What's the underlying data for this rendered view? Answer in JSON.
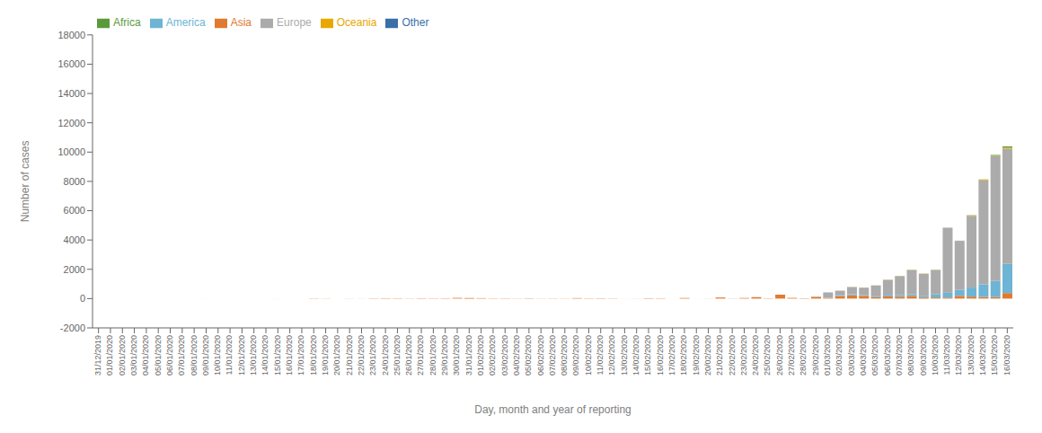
{
  "chart_data": {
    "type": "bar",
    "stacked": true,
    "xlabel": "Day, month and year of reporting",
    "ylabel": "Number of cases",
    "ylim": [
      -2000,
      18000
    ],
    "yticks": [
      -2000,
      0,
      2000,
      4000,
      6000,
      8000,
      10000,
      12000,
      14000,
      16000,
      18000
    ],
    "grid": false,
    "legend": "upper left",
    "categories": [
      "31/12/2019",
      "01/01/2020",
      "02/01/2020",
      "03/01/2020",
      "04/01/2020",
      "05/01/2020",
      "06/01/2020",
      "07/01/2020",
      "08/01/2020",
      "09/01/2020",
      "10/01/2020",
      "11/01/2020",
      "12/01/2020",
      "13/01/2020",
      "14/01/2020",
      "15/01/2020",
      "16/01/2020",
      "17/01/2020",
      "18/01/2020",
      "19/01/2020",
      "20/01/2020",
      "21/01/2020",
      "22/01/2020",
      "23/01/2020",
      "24/01/2020",
      "25/01/2020",
      "26/01/2020",
      "27/01/2020",
      "28/01/2020",
      "29/01/2020",
      "30/01/2020",
      "31/01/2020",
      "01/02/2020",
      "02/02/2020",
      "03/02/2020",
      "04/02/2020",
      "05/02/2020",
      "06/02/2020",
      "07/02/2020",
      "08/02/2020",
      "09/02/2020",
      "10/02/2020",
      "11/02/2020",
      "12/02/2020",
      "13/02/2020",
      "14/02/2020",
      "15/02/2020",
      "16/02/2020",
      "17/02/2020",
      "18/02/2020",
      "19/02/2020",
      "20/02/2020",
      "21/02/2020",
      "22/02/2020",
      "23/02/2020",
      "24/02/2020",
      "25/02/2020",
      "26/02/2020",
      "27/02/2020",
      "28/02/2020",
      "29/02/2020",
      "01/03/2020",
      "02/03/2020",
      "03/03/2020",
      "04/03/2020",
      "05/03/2020",
      "06/03/2020",
      "07/03/2020",
      "08/03/2020",
      "09/03/2020",
      "10/03/2020",
      "11/03/2020",
      "12/03/2020",
      "13/03/2020",
      "14/03/2020",
      "15/03/2020",
      "16/03/2020"
    ],
    "series": [
      {
        "name": "Asia",
        "color": "#E07A30",
        "values": [
          0,
          0,
          0,
          0,
          0,
          0,
          0,
          0,
          0,
          2,
          0,
          0,
          0,
          0,
          0,
          2,
          0,
          0,
          15,
          9,
          0,
          7,
          5,
          17,
          23,
          20,
          13,
          21,
          18,
          21,
          48,
          42,
          29,
          17,
          18,
          10,
          17,
          10,
          14,
          10,
          33,
          19,
          21,
          14,
          3,
          6,
          26,
          20,
          0,
          41,
          2,
          2,
          75,
          7,
          41,
          100,
          19,
          269,
          47,
          22,
          120,
          49,
          176,
          230,
          192,
          99,
          157,
          127,
          185,
          66,
          77,
          68,
          187,
          135,
          114,
          99,
          378
        ]
      },
      {
        "name": "America",
        "color": "#6EB4D4",
        "values": [
          0,
          0,
          0,
          0,
          0,
          0,
          0,
          0,
          0,
          0,
          0,
          0,
          0,
          0,
          0,
          0,
          0,
          0,
          0,
          0,
          0,
          0,
          0,
          0,
          0,
          0,
          0,
          0,
          0,
          0,
          1,
          0,
          0,
          0,
          0,
          0,
          5,
          0,
          0,
          0,
          0,
          0,
          2,
          0,
          0,
          0,
          0,
          0,
          0,
          0,
          0,
          0,
          0,
          5,
          0,
          0,
          0,
          0,
          0,
          0,
          11,
          9,
          73,
          73,
          50,
          57,
          105,
          107,
          116,
          91,
          232,
          331,
          412,
          620,
          868,
          1101,
          1988
        ]
      },
      {
        "name": "Europe",
        "color": "#ABABAB",
        "values": [
          0,
          0,
          0,
          0,
          0,
          0,
          0,
          0,
          0,
          0,
          0,
          0,
          0,
          0,
          0,
          0,
          0,
          0,
          0,
          0,
          0,
          0,
          0,
          0,
          0,
          0,
          0,
          0,
          0,
          0,
          0,
          0,
          0,
          0,
          0,
          0,
          0,
          0,
          0,
          0,
          0,
          0,
          0,
          0,
          0,
          0,
          0,
          0,
          0,
          0,
          0,
          0,
          0,
          0,
          0,
          0,
          0,
          0,
          0,
          0,
          0,
          366,
          292,
          486,
          505,
          738,
          1021,
          1301,
          1653,
          1544,
          1649,
          4424,
          3343,
          4894,
          7095,
          8521,
          7863
        ]
      },
      {
        "name": "Oceania",
        "color": "#E8A800",
        "values": [
          0,
          0,
          0,
          0,
          0,
          0,
          0,
          0,
          0,
          0,
          0,
          0,
          0,
          0,
          0,
          0,
          0,
          0,
          0,
          0,
          0,
          0,
          0,
          0,
          0,
          0,
          1,
          0,
          0,
          0,
          1,
          0,
          2,
          0,
          1,
          2,
          0,
          1,
          0,
          2,
          2,
          1,
          1,
          0,
          0,
          1,
          0,
          0,
          0,
          0,
          0,
          5,
          2,
          0,
          0,
          0,
          1,
          0,
          2,
          2,
          2,
          1,
          4,
          7,
          5,
          6,
          11,
          13,
          15,
          2,
          10,
          2,
          7,
          38,
          35,
          39,
          74
        ]
      },
      {
        "name": "Africa",
        "color": "#5B9A3C",
        "values": [
          0,
          0,
          0,
          0,
          0,
          0,
          0,
          0,
          0,
          0,
          0,
          0,
          0,
          0,
          0,
          0,
          0,
          0,
          0,
          0,
          0,
          0,
          0,
          0,
          0,
          0,
          0,
          0,
          0,
          0,
          0,
          0,
          0,
          0,
          0,
          0,
          0,
          0,
          0,
          0,
          0,
          0,
          0,
          0,
          0,
          0,
          0,
          0,
          0,
          0,
          0,
          0,
          0,
          0,
          0,
          0,
          0,
          0,
          0,
          1,
          0,
          0,
          1,
          0,
          0,
          3,
          0,
          2,
          2,
          2,
          5,
          9,
          6,
          13,
          23,
          41,
          90
        ]
      },
      {
        "name": "Other",
        "color": "#3A6EA8",
        "values": [
          0,
          0,
          0,
          0,
          0,
          0,
          0,
          0,
          0,
          0,
          0,
          0,
          0,
          0,
          0,
          0,
          0,
          0,
          0,
          0,
          0,
          0,
          0,
          0,
          0,
          0,
          0,
          0,
          0,
          0,
          0,
          0,
          0,
          0,
          0,
          0,
          0,
          0,
          0,
          0,
          0,
          0,
          0,
          0,
          0,
          0,
          0,
          0,
          0,
          0,
          0,
          0,
          0,
          0,
          0,
          0,
          0,
          0,
          0,
          0,
          0,
          0,
          0,
          0,
          0,
          0,
          0,
          0,
          0,
          0,
          0,
          0,
          0,
          0,
          0,
          0,
          0
        ]
      }
    ]
  }
}
